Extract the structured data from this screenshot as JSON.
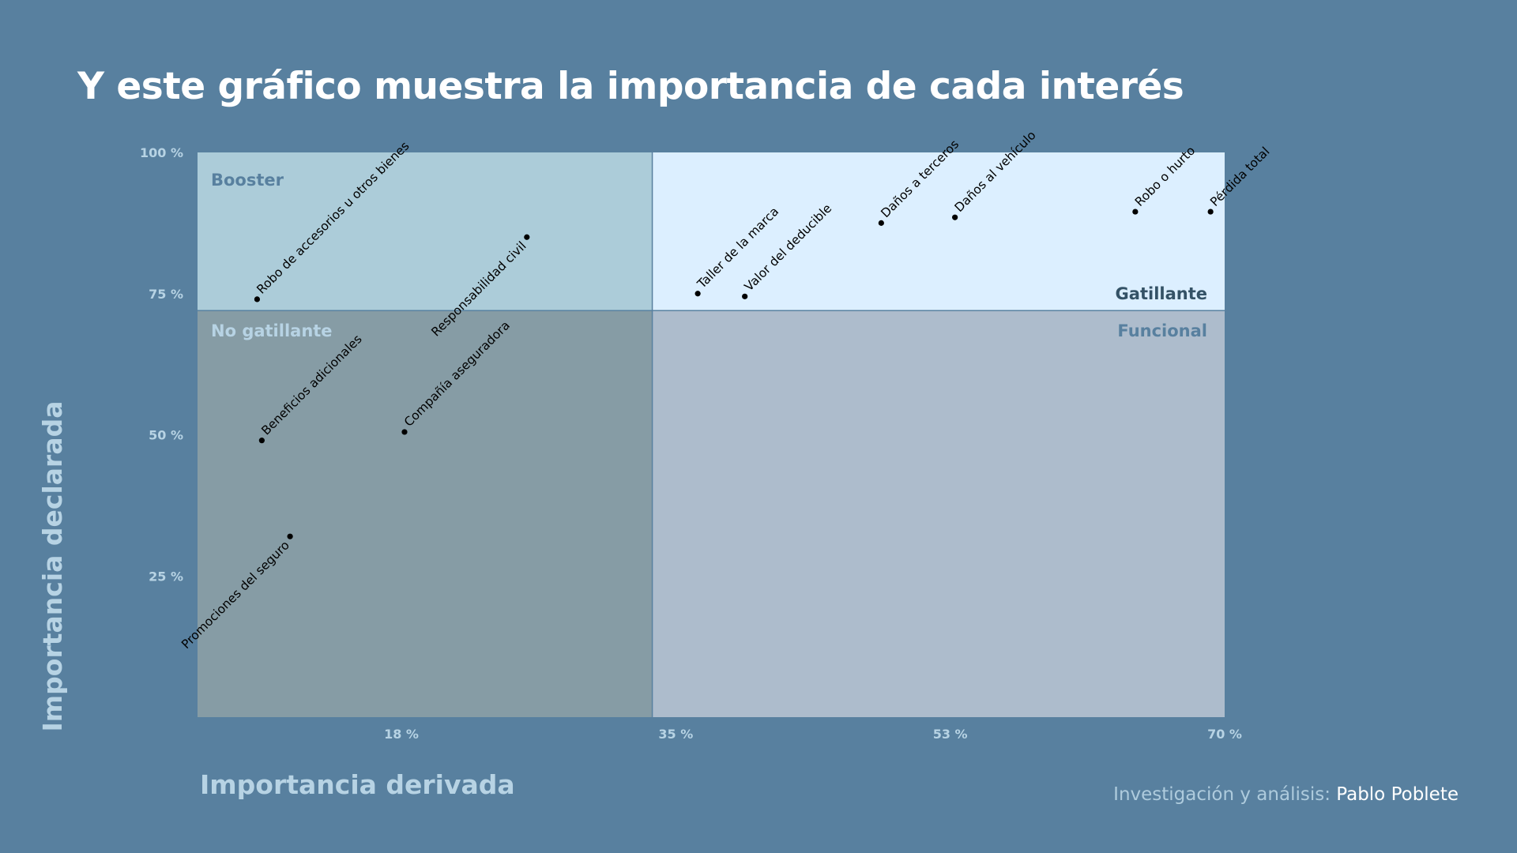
{
  "title": "Y este gráfico muestra la importancia de cada interés",
  "credit": {
    "prefix": "Investigación y análisis:",
    "author": "Pablo Poblete"
  },
  "colors": {
    "background": "#58809f",
    "booster": "#acccd9",
    "gatillante": "#dcefff",
    "no_gatillante": "#869ca5",
    "funcional": "#adbccc",
    "axis_text": "#b7d3e4",
    "quadrant_label_light": "#58809f",
    "quadrant_label_dark": "#345266",
    "point": "#000000"
  },
  "chart_data": {
    "type": "scatter",
    "title": "Y este gráfico muestra la importancia de cada interés",
    "xlabel": "Importancia derivada",
    "ylabel": "Importancia declarada",
    "xlim": [
      4.5,
      70.0
    ],
    "ylim": [
      0,
      100
    ],
    "x_ticks": [
      {
        "value": 17.5,
        "label": "18 %"
      },
      {
        "value": 35.0,
        "label": "35 %"
      },
      {
        "value": 52.5,
        "label": "53 %"
      },
      {
        "value": 70.0,
        "label": "70 %"
      }
    ],
    "y_ticks": [
      {
        "value": 25,
        "label": "25 %"
      },
      {
        "value": 50,
        "label": "50 %"
      },
      {
        "value": 75,
        "label": "75 %"
      },
      {
        "value": 100,
        "label": "100 %"
      }
    ],
    "x_divider": 33.5,
    "y_divider": 72,
    "quadrants": [
      {
        "key": "booster",
        "label": "Booster",
        "position": "top-left"
      },
      {
        "key": "gatillante",
        "label": "Gatillante",
        "position": "top-right"
      },
      {
        "key": "no_gatillante",
        "label": "No gatillante",
        "position": "bottom-left"
      },
      {
        "key": "funcional",
        "label": "Funcional",
        "position": "bottom-right"
      }
    ],
    "points": [
      {
        "label": "Robo de accesorios u otros bienes",
        "x": 8.3,
        "y": 74,
        "label_side": "above"
      },
      {
        "label": "Responsabilidad civil",
        "x": 25.5,
        "y": 85,
        "label_side": "below"
      },
      {
        "label": "Taller de la marca",
        "x": 36.4,
        "y": 75,
        "label_side": "above"
      },
      {
        "label": "Valor del deducible",
        "x": 39.4,
        "y": 74.5,
        "label_side": "above"
      },
      {
        "label": "Daños a terceros",
        "x": 48.1,
        "y": 87.5,
        "label_side": "above"
      },
      {
        "label": "Daños al vehículo",
        "x": 52.8,
        "y": 88.5,
        "label_side": "above"
      },
      {
        "label": "Robo o hurto",
        "x": 64.3,
        "y": 89.5,
        "label_side": "above"
      },
      {
        "label": "Pérdida total",
        "x": 69.1,
        "y": 89.5,
        "label_side": "above"
      },
      {
        "label": "Beneficios adicionales",
        "x": 8.6,
        "y": 49,
        "label_side": "above"
      },
      {
        "label": "Compañía aseguradora",
        "x": 17.7,
        "y": 50.5,
        "label_side": "above"
      },
      {
        "label": "Promociones del seguro",
        "x": 10.4,
        "y": 32,
        "label_side": "below"
      }
    ]
  }
}
